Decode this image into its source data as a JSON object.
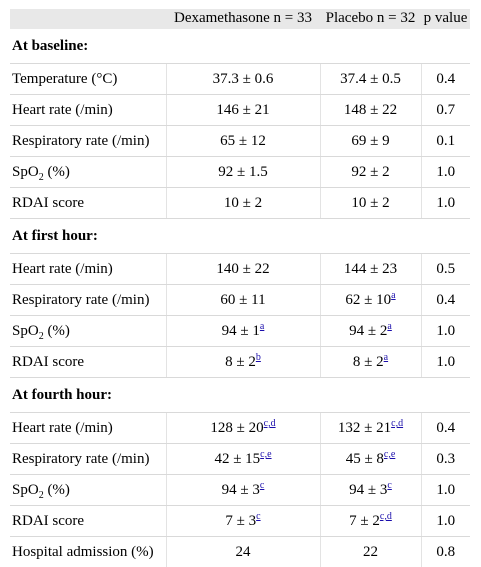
{
  "header": {
    "col1": "",
    "col2": "Dexamethasone n = 33",
    "col3": "Placebo n = 32",
    "col4": "p value"
  },
  "sections": [
    {
      "title": "At baseline:",
      "rows": [
        {
          "label": "Temperature (°C)",
          "sub": "",
          "label_tail": "",
          "dex": "37.3 ± 0.6",
          "dex_sup": "",
          "pla": "37.4 ± 0.5",
          "pla_sup": "",
          "p": "0.4"
        },
        {
          "label": "Heart rate (/min)",
          "sub": "",
          "label_tail": "",
          "dex": "146 ± 21",
          "dex_sup": "",
          "pla": "148 ± 22",
          "pla_sup": "",
          "p": "0.7"
        },
        {
          "label": "Respiratory rate (/min)",
          "sub": "",
          "label_tail": "",
          "dex": "65 ± 12",
          "dex_sup": "",
          "pla": "69 ± 9",
          "pla_sup": "",
          "p": "0.1"
        },
        {
          "label": "SpO",
          "sub": "2",
          "label_tail": " (%)",
          "dex": "92 ± 1.5",
          "dex_sup": "",
          "pla": "92 ± 2",
          "pla_sup": "",
          "p": "1.0"
        },
        {
          "label": "RDAI score",
          "sub": "",
          "label_tail": "",
          "dex": "10 ± 2",
          "dex_sup": "",
          "pla": "10 ± 2",
          "pla_sup": "",
          "p": "1.0"
        }
      ]
    },
    {
      "title": "At first hour:",
      "rows": [
        {
          "label": "Heart rate (/min)",
          "sub": "",
          "label_tail": "",
          "dex": "140 ± 22",
          "dex_sup": "",
          "pla": "144 ± 23",
          "pla_sup": "",
          "p": "0.5"
        },
        {
          "label": "Respiratory rate (/min)",
          "sub": "",
          "label_tail": "",
          "dex": "60 ± 11",
          "dex_sup": "",
          "pla": "62 ± 10",
          "pla_sup": "a",
          "p": "0.4"
        },
        {
          "label": "SpO",
          "sub": "2",
          "label_tail": " (%)",
          "dex": "94 ± 1",
          "dex_sup": "a",
          "pla": "94 ± 2",
          "pla_sup": "a",
          "p": "1.0"
        },
        {
          "label": "RDAI score",
          "sub": "",
          "label_tail": "",
          "dex": "8 ± 2",
          "dex_sup": "b",
          "pla": "8 ± 2",
          "pla_sup": "a",
          "p": "1.0"
        }
      ]
    },
    {
      "title": "At fourth hour:",
      "rows": [
        {
          "label": "Heart rate (/min)",
          "sub": "",
          "label_tail": "",
          "dex": "128 ± 20",
          "dex_sup": "c,d",
          "pla": "132 ± 21",
          "pla_sup": "c,d",
          "p": "0.4"
        },
        {
          "label": "Respiratory rate (/min)",
          "sub": "",
          "label_tail": "",
          "dex": "42 ± 15",
          "dex_sup": "c,e",
          "pla": "45 ± 8",
          "pla_sup": "c,e",
          "p": "0.3"
        },
        {
          "label": "SpO",
          "sub": "2",
          "label_tail": " (%)",
          "dex": "94 ± 3",
          "dex_sup": "c",
          "pla": "94 ± 3",
          "pla_sup": "c",
          "p": "1.0"
        },
        {
          "label": "RDAI score",
          "sub": "",
          "label_tail": "",
          "dex": "7 ± 3",
          "dex_sup": "c",
          "pla": "7 ± 2",
          "pla_sup": "c,d",
          "p": "1.0"
        },
        {
          "label": "Hospital admission (%)",
          "sub": "",
          "label_tail": "",
          "dex": "24",
          "dex_sup": "",
          "pla": "22",
          "pla_sup": "",
          "p": "0.8"
        }
      ]
    }
  ]
}
